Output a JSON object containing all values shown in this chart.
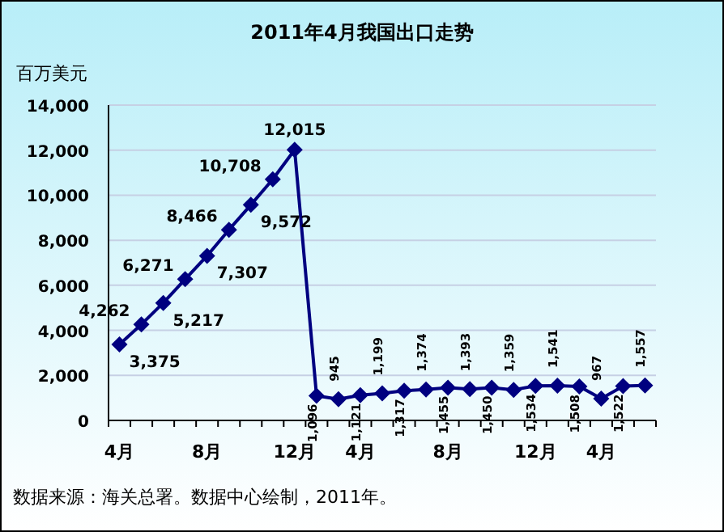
{
  "chart_data": {
    "type": "line",
    "title": "2011年4月我国出口走势",
    "ylabel": "百万美元",
    "categories": [
      "4月",
      null,
      null,
      null,
      "8月",
      null,
      null,
      null,
      "12月",
      null,
      null,
      "4月",
      null,
      null,
      null,
      "8月",
      null,
      null,
      null,
      "12月",
      null,
      null,
      "4月",
      null,
      null
    ],
    "values": [
      3375,
      4262,
      5217,
      6271,
      7307,
      8466,
      9572,
      10708,
      12015,
      1096,
      945,
      1121,
      1199,
      1317,
      1374,
      1455,
      1393,
      1450,
      1359,
      1534,
      1541,
      1508,
      967,
      1522,
      1557
    ],
    "value_labels": [
      "3,375",
      "4,262",
      "5,217",
      "6,271",
      "7,307",
      "8,466",
      "9,572",
      "10,708",
      "12,015",
      "1,096",
      "945",
      "1,121",
      "1,199",
      "1,317",
      "1,374",
      "1,455",
      "1,393",
      "1,450",
      "1,359",
      "1,534",
      "1,541",
      "1,508",
      "967",
      "1,522",
      "1,557"
    ],
    "color": "#000080",
    "marker": "diamond",
    "grid": "y",
    "ylim": [
      0,
      14000
    ],
    "yticks": [
      0,
      {
        "value": 2000,
        "label": "2,000"
      },
      {
        "value": 4000,
        "label": "4,000"
      },
      {
        "value": 6000,
        "label": "6,000"
      },
      {
        "value": 8000,
        "label": "8,000"
      },
      {
        "value": 10000,
        "label": "10,000"
      },
      {
        "value": 12000,
        "label": "12,000"
      },
      {
        "value": 14000,
        "label": "14,000"
      }
    ],
    "annotations": [
      "数据来源：海关总署。数据中心绘制，2011年。"
    ]
  }
}
